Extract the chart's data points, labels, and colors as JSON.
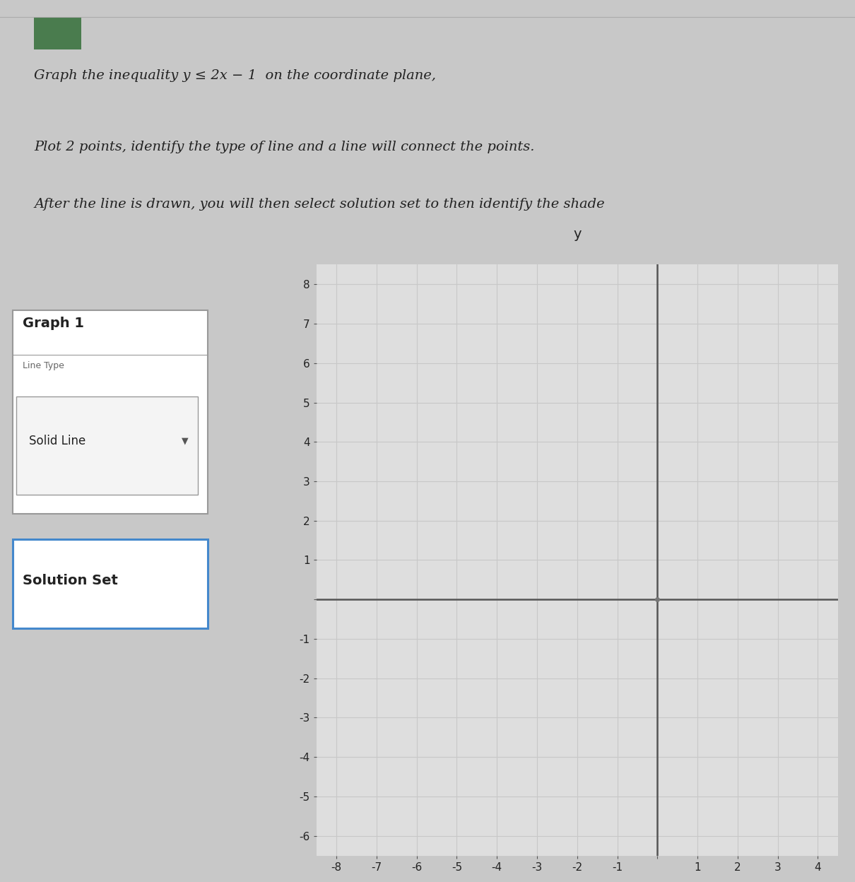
{
  "title_line1": "Graph the inequality y ≤ 2x − 1  on the coordinate plane,",
  "title_line2": "Plot 2 points, identify the type of line and a line will connect the points.",
  "title_line3": "After the line is drawn, you will then select solution set to then identify the shade",
  "graph_title": "Graph 1",
  "line_type_label": "Line Type",
  "line_type_value": "Solid Line",
  "solution_set_label": "Solution Set",
  "y_axis_label": "y",
  "x_min": -8,
  "x_max": 4,
  "y_min": -6,
  "y_max": 8,
  "grid_color": "#c8c8c8",
  "axis_color": "#555555",
  "page_bg": "#c8c8c8",
  "panel_bg": "#e8e8e8",
  "box_bg": "#ffffff",
  "box_border_blue": "#4488cc",
  "graph1_box_border": "#999999",
  "font_color": "#222222",
  "green_rect": "#4a7c4e",
  "title_fontsize": 14,
  "tick_fontsize": 11
}
